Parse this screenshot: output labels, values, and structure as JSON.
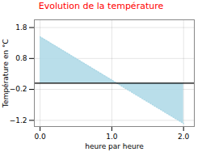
{
  "chart_data": {
    "type": "area",
    "title": "Evolution de la température",
    "xlabel": "heure par heure",
    "ylabel": "Température en °C",
    "x": [
      0,
      2
    ],
    "values": [
      1.5,
      -1.3
    ],
    "color": "#add8e6",
    "line_style": "dotted",
    "xlim": [
      -0.08,
      2.15
    ],
    "ylim": [
      -1.4,
      2.05
    ],
    "xticks": [
      0,
      1,
      2
    ],
    "yticks": [
      -1.2,
      -0.2,
      0.8,
      1.8
    ],
    "grid": true
  }
}
